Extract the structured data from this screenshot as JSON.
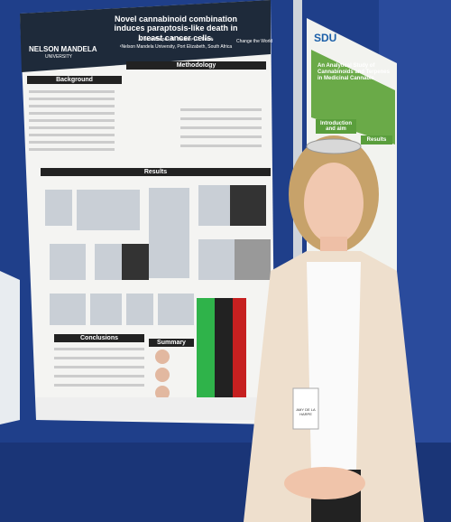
{
  "left_poster": {
    "logo": "NELSON MANDELA",
    "logo_sub": "UNIVERSITY",
    "tagline": "Change the World",
    "title": "Novel cannabinoid combination induces paraptosis-like death in breast cancer cells.",
    "authors": "A. de la Harpe¹, N. Beukes¹, C. Frost¹",
    "affiliation": "¹Nelson Mandela University, Port Elizabeth, South Africa",
    "sections": [
      "Background",
      "Methodology",
      "Results",
      "Conclusions",
      "Summary"
    ]
  },
  "right_poster": {
    "logo": "SDU",
    "title": "An Analytical Study of Cannabinoids and Terpenes in Medicinal Cannabis",
    "sections": [
      "Introduction and aim",
      "Results"
    ]
  },
  "badge": {
    "name": "AMY DE LA HARPE"
  }
}
